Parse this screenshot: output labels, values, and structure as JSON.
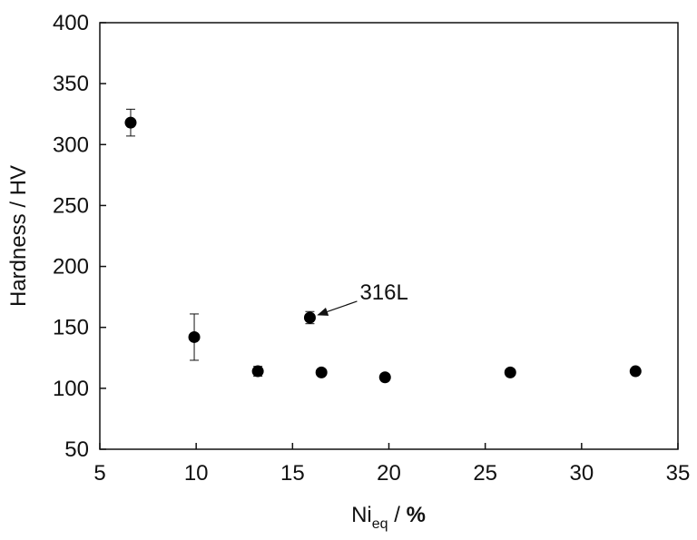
{
  "chart_data": {
    "type": "scatter",
    "title": "",
    "xlabel": {
      "main": "Ni",
      "sub": "eq",
      "suffix": " / ",
      "unit": "%"
    },
    "ylabel": "Hardness / HV",
    "xlim": [
      5,
      35
    ],
    "ylim": [
      50,
      400
    ],
    "xticks": [
      5,
      10,
      15,
      20,
      25,
      30,
      35
    ],
    "yticks": [
      50,
      100,
      150,
      200,
      250,
      300,
      350,
      400
    ],
    "grid": false,
    "marker_color": "#000000",
    "points": [
      {
        "x": 6.6,
        "y": 318,
        "err": 11
      },
      {
        "x": 9.9,
        "y": 142,
        "err": 19
      },
      {
        "x": 13.2,
        "y": 114,
        "err": 4
      },
      {
        "x": 15.9,
        "y": 158,
        "err": 5
      },
      {
        "x": 16.5,
        "y": 113,
        "err": 0
      },
      {
        "x": 19.8,
        "y": 109,
        "err": 0
      },
      {
        "x": 26.3,
        "y": 113,
        "err": 0
      },
      {
        "x": 32.8,
        "y": 114,
        "err": 0
      }
    ],
    "annotations": [
      {
        "text": "316L",
        "target_x": 15.9,
        "target_y": 158
      }
    ]
  }
}
